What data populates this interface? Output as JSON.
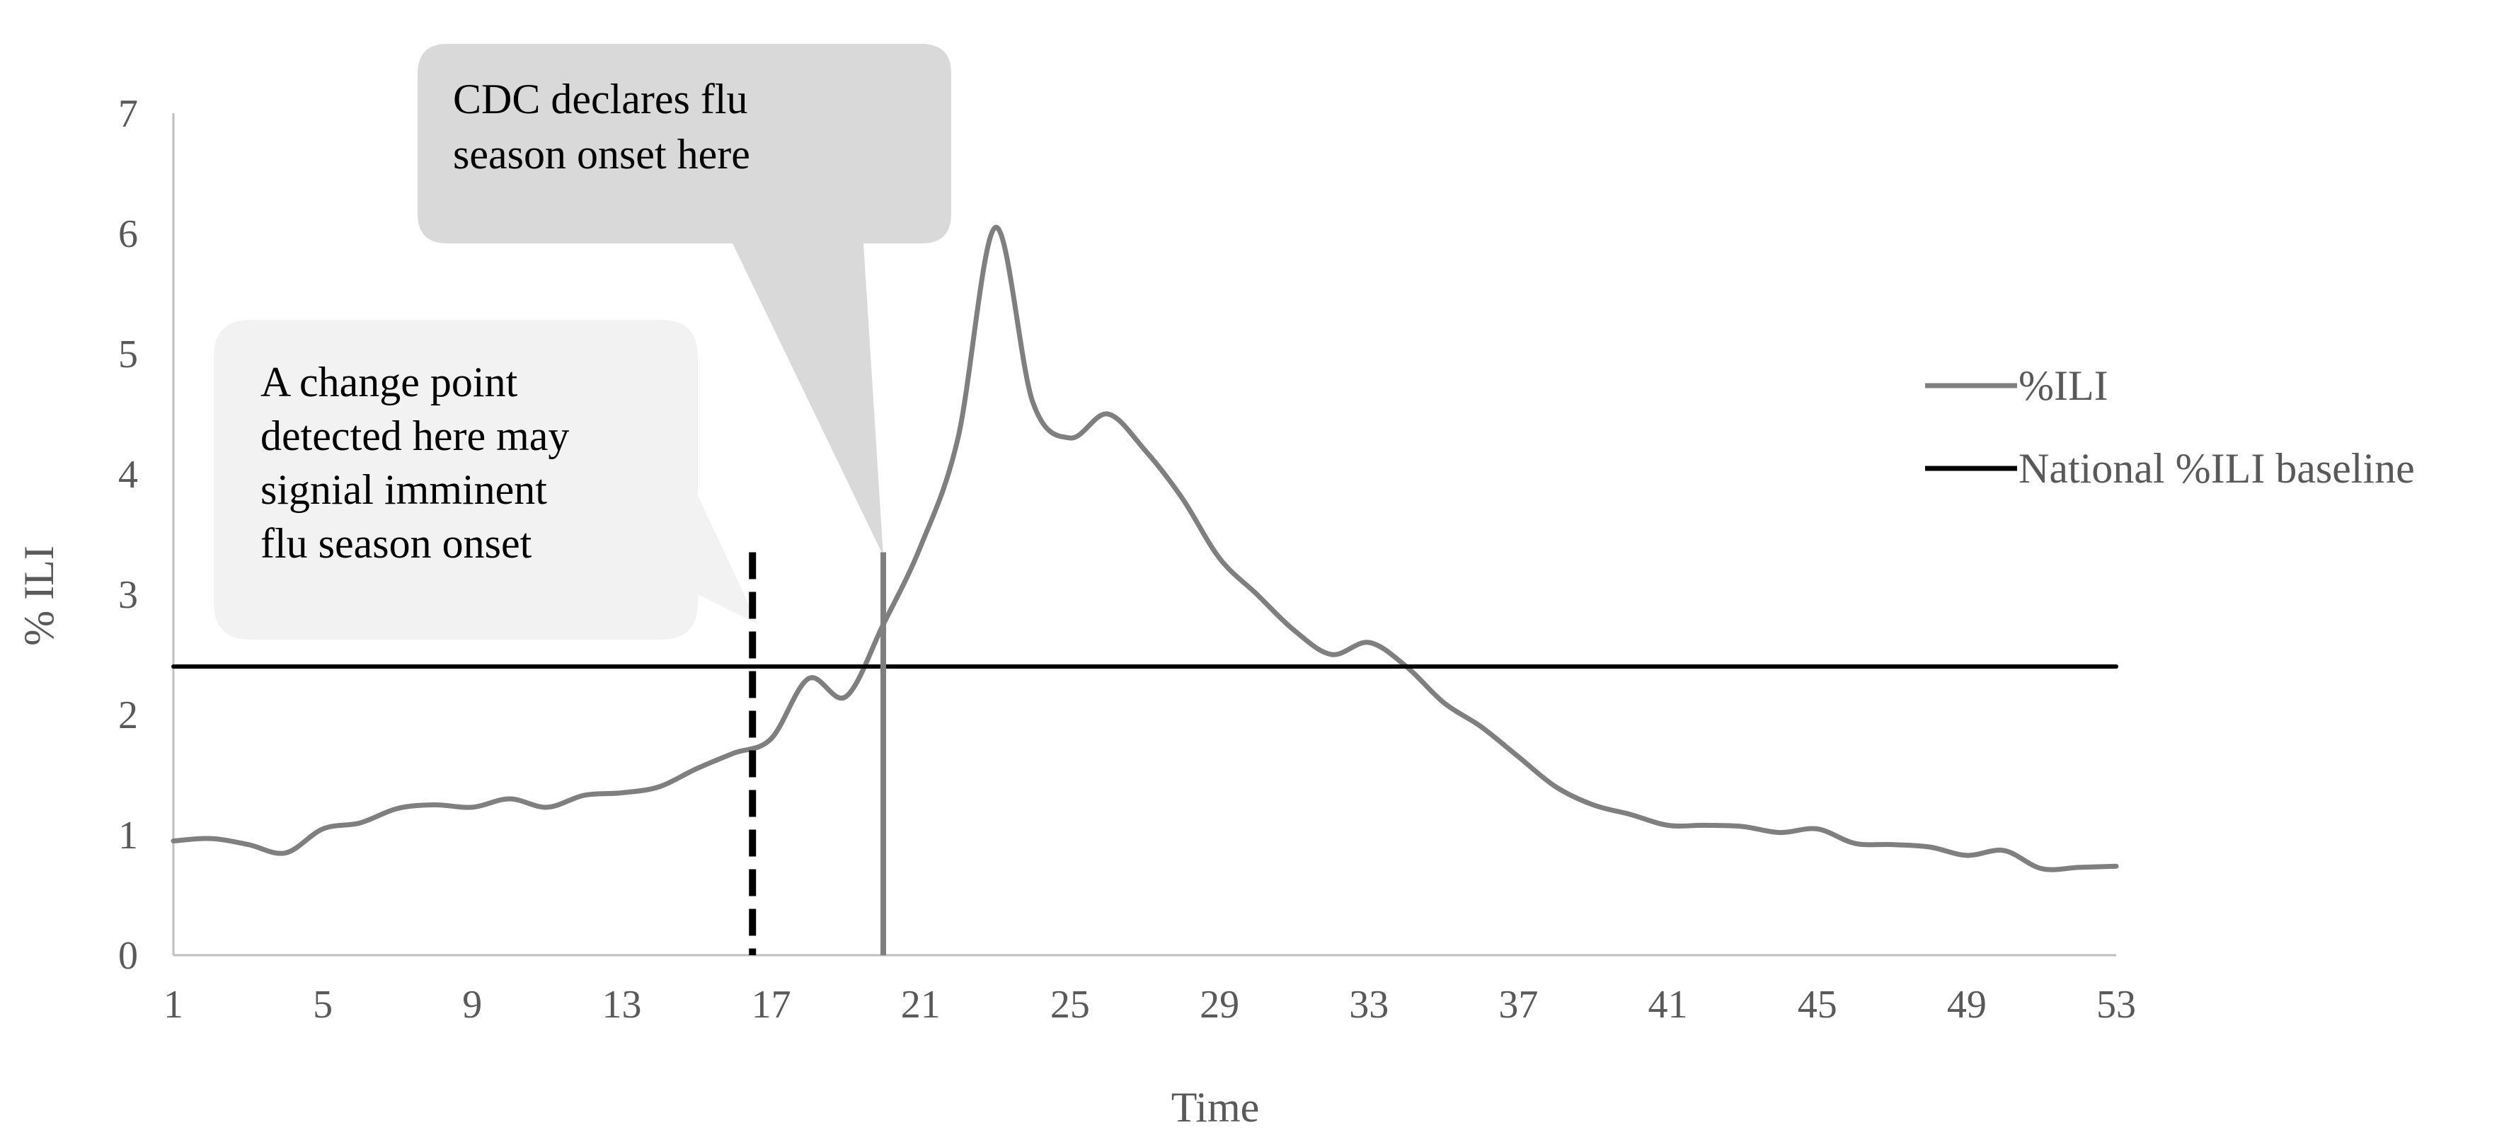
{
  "chart_data": {
    "type": "line",
    "title": "",
    "xlabel": "Time",
    "ylabel": "% ILI",
    "xlim": [
      1,
      53
    ],
    "ylim": [
      0,
      7
    ],
    "x_ticks": [
      1,
      5,
      9,
      13,
      17,
      21,
      25,
      29,
      33,
      37,
      41,
      45,
      49,
      53
    ],
    "y_ticks": [
      0,
      1,
      2,
      3,
      4,
      5,
      6,
      7
    ],
    "grid": false,
    "legend_position": "right",
    "series": [
      {
        "name": "%ILI",
        "color": "#7f7f7f",
        "x": [
          1,
          2,
          3,
          4,
          5,
          6,
          7,
          8,
          9,
          10,
          11,
          12,
          13,
          14,
          15,
          16,
          17,
          18,
          19,
          20,
          21,
          22,
          23,
          24,
          25,
          26,
          27,
          28,
          29,
          30,
          31,
          32,
          33,
          34,
          35,
          36,
          37,
          38,
          39,
          40,
          41,
          42,
          43,
          44,
          45,
          46,
          47,
          48,
          49,
          50,
          51,
          52,
          53
        ],
        "values": [
          0.95,
          0.97,
          0.92,
          0.85,
          1.05,
          1.1,
          1.22,
          1.25,
          1.23,
          1.3,
          1.23,
          1.33,
          1.35,
          1.4,
          1.55,
          1.68,
          1.8,
          2.3,
          2.15,
          2.75,
          3.4,
          4.3,
          6.05,
          4.6,
          4.3,
          4.5,
          4.2,
          3.8,
          3.3,
          3.0,
          2.7,
          2.5,
          2.6,
          2.4,
          2.1,
          1.9,
          1.65,
          1.4,
          1.25,
          1.17,
          1.08,
          1.08,
          1.07,
          1.02,
          1.05,
          0.93,
          0.92,
          0.9,
          0.83,
          0.87,
          0.72,
          0.73,
          0.74
        ]
      },
      {
        "name": "National %ILI baseline",
        "color": "#000000",
        "x": [
          1,
          53
        ],
        "values": [
          2.4,
          2.4
        ]
      }
    ],
    "markers": [
      {
        "x": 16.5,
        "ymax": 3.35,
        "style": "dashed",
        "color": "#000000"
      },
      {
        "x": 20,
        "ymax": 3.35,
        "style": "solid",
        "color": "#7f7f7f"
      }
    ],
    "annotations": [
      {
        "id": "cdc",
        "lines": [
          "CDC declares flu",
          "season onset here"
        ],
        "fill": "#d9d9d9",
        "points_to_x": 20
      },
      {
        "id": "change",
        "lines": [
          "A change point",
          "detected here may",
          "signial imminent",
          "flu season onset"
        ],
        "fill": "#f2f2f2",
        "points_to_x": 16.5
      }
    ]
  }
}
